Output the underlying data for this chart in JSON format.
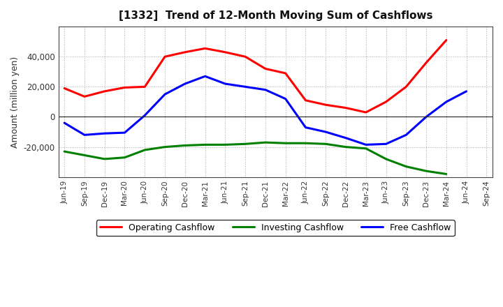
{
  "title": "[1332]  Trend of 12-Month Moving Sum of Cashflows",
  "ylabel": "Amount (million yen)",
  "x_labels": [
    "Jun-19",
    "Sep-19",
    "Dec-19",
    "Mar-20",
    "Jun-20",
    "Sep-20",
    "Dec-20",
    "Mar-21",
    "Jun-21",
    "Sep-21",
    "Dec-21",
    "Mar-22",
    "Jun-22",
    "Sep-22",
    "Dec-22",
    "Mar-23",
    "Jun-23",
    "Sep-23",
    "Dec-23",
    "Mar-24",
    "Jun-24",
    "Sep-24"
  ],
  "operating_cashflow": [
    19000,
    13500,
    17000,
    19500,
    20000,
    40000,
    43000,
    45500,
    43000,
    40000,
    32000,
    29000,
    11000,
    8000,
    6000,
    3000,
    10000,
    20000,
    36000,
    51000,
    null,
    null
  ],
  "investing_cashflow": [
    -23000,
    -25500,
    -28000,
    -27000,
    -22000,
    -20000,
    -19000,
    -18500,
    -18500,
    -18000,
    -17000,
    -17500,
    -17500,
    -18000,
    -20000,
    -21000,
    -28000,
    -33000,
    -36000,
    -38000,
    null,
    null
  ],
  "free_cashflow": [
    -4000,
    -12000,
    -11000,
    -10500,
    1000,
    15000,
    22000,
    27000,
    22000,
    20000,
    18000,
    12000,
    -7000,
    -10000,
    -14000,
    -18500,
    -18000,
    -12000,
    0,
    10000,
    17000,
    null
  ],
  "ylim": [
    -40000,
    60000
  ],
  "yticks": [
    -20000,
    0,
    20000,
    40000
  ],
  "operating_color": "#ff0000",
  "investing_color": "#008000",
  "free_color": "#0000ff",
  "line_width": 2.2,
  "background_color": "#ffffff",
  "plot_bg_color": "#ffffff",
  "grid_color": "#aaaaaa",
  "border_color": "#444444"
}
